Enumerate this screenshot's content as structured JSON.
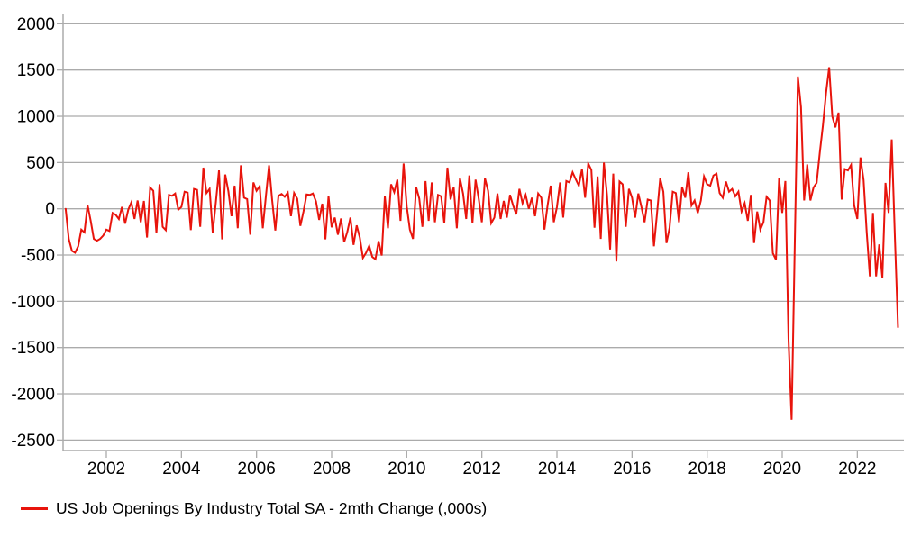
{
  "legend": {
    "label": "US Job Openings By Industry Total SA - 2mth Change (,000s)"
  },
  "colors": {
    "line": "#e8140c",
    "grid": "#ababab",
    "axis": "#ababab",
    "text": "#000000",
    "background": "#ffffff"
  },
  "chart_data": {
    "type": "line",
    "title": "",
    "series_name": "US Job Openings By Industry Total SA - 2mth Change (,000s)",
    "unit": ",000s",
    "frequency": "monthly",
    "start_month": "2000-12",
    "end_month": "2023-02",
    "legend_position": "bottom-left",
    "grid": "horizontal",
    "ylim": [
      -2500,
      2000
    ],
    "y_ticks": [
      2000,
      1500,
      1000,
      500,
      0,
      -500,
      -1000,
      -1500,
      -2000,
      -2500
    ],
    "x_ticks": [
      2002,
      2004,
      2006,
      2008,
      2010,
      2012,
      2014,
      2016,
      2018,
      2020,
      2022
    ],
    "values": [
      0,
      -325,
      -455,
      -475,
      -405,
      -225,
      -255,
      40,
      -130,
      -325,
      -345,
      -325,
      -290,
      -225,
      -240,
      -45,
      -65,
      -110,
      20,
      -160,
      -10,
      70,
      -110,
      90,
      -145,
      85,
      -310,
      230,
      195,
      -260,
      265,
      -195,
      -230,
      150,
      140,
      165,
      -10,
      20,
      185,
      175,
      -230,
      215,
      205,
      -195,
      445,
      170,
      215,
      -260,
      70,
      415,
      -330,
      370,
      190,
      -80,
      250,
      -210,
      470,
      120,
      105,
      -280,
      285,
      195,
      245,
      -210,
      140,
      470,
      90,
      -235,
      140,
      160,
      130,
      175,
      -80,
      170,
      110,
      -185,
      -30,
      155,
      150,
      165,
      80,
      -120,
      55,
      -330,
      135,
      -200,
      -95,
      -280,
      -105,
      -360,
      -250,
      -95,
      -390,
      -180,
      -310,
      -530,
      -475,
      -400,
      -520,
      -545,
      -350,
      -505,
      135,
      -210,
      265,
      180,
      315,
      -130,
      490,
      25,
      -225,
      -325,
      235,
      110,
      -195,
      300,
      -130,
      285,
      -145,
      150,
      135,
      -155,
      445,
      100,
      235,
      -210,
      330,
      165,
      -110,
      360,
      -155,
      315,
      110,
      -145,
      330,
      195,
      -155,
      -95,
      165,
      -110,
      85,
      -95,
      150,
      35,
      -60,
      215,
      60,
      150,
      0,
      120,
      -80,
      165,
      120,
      -225,
      35,
      250,
      -145,
      20,
      285,
      -95,
      300,
      285,
      395,
      320,
      250,
      430,
      120,
      490,
      420,
      -205,
      350,
      -325,
      500,
      150,
      -440,
      380,
      -570,
      295,
      265,
      -195,
      215,
      120,
      -95,
      165,
      20,
      -145,
      100,
      90,
      -405,
      -45,
      330,
      185,
      -370,
      -205,
      185,
      170,
      -145,
      235,
      120,
      395,
      35,
      90,
      -45,
      90,
      350,
      265,
      250,
      360,
      380,
      170,
      120,
      295,
      185,
      215,
      135,
      185,
      -30,
      60,
      -130,
      150,
      -370,
      -30,
      -225,
      -145,
      130,
      90,
      -480,
      -550,
      330,
      -45,
      300,
      -1400,
      -2280,
      -400,
      1430,
      1100,
      90,
      480,
      90,
      230,
      280,
      605,
      900,
      1250,
      1530,
      1000,
      880,
      1040,
      100,
      430,
      415,
      475,
      35,
      -110,
      555,
      310,
      -255,
      -730,
      -45,
      -730,
      -385,
      -745,
      280,
      -45,
      750,
      -300,
      -1280
    ]
  }
}
